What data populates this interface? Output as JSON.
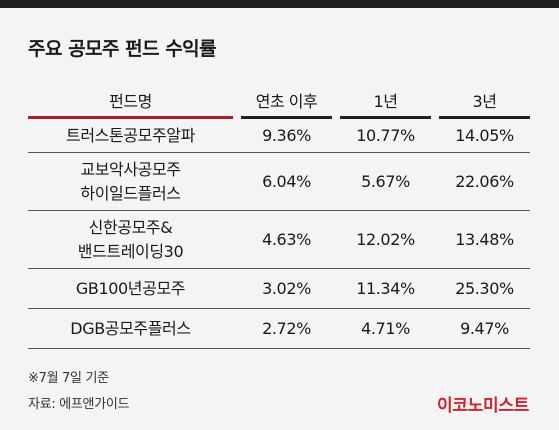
{
  "title": "주요 공모주 펀드 수익률",
  "headers": [
    "펀드명",
    "연초 이후",
    "1년",
    "3년"
  ],
  "rows": [
    {
      "name_lines": [
        "트러스톤공모주알파"
      ],
      "ytd": "9.36%",
      "y1": "10.77%",
      "y3": "14.05%"
    },
    {
      "name_lines": [
        "교보악사공모주",
        "하이일드플러스"
      ],
      "ytd": "6.04%",
      "y1": "5.67%",
      "y3": "22.06%"
    },
    {
      "name_lines": [
        "신한공모주&",
        "밴드트레이딩30"
      ],
      "ytd": "4.63%",
      "y1": "12.02%",
      "y3": "13.48%"
    },
    {
      "name_lines": [
        "GB100년공모주"
      ],
      "ytd": "3.02%",
      "y1": "11.34%",
      "y3": "25.30%"
    },
    {
      "name_lines": [
        "DGB공모주플러스"
      ],
      "ytd": "2.72%",
      "y1": "4.71%",
      "y3": "9.47%"
    }
  ],
  "footnote": "※7월 7일 기준",
  "source": "자료: 에프앤가이드",
  "logo": "이코노미스트",
  "colors": {
    "accent_red": "#a0222a",
    "logo_red": "#d3202d",
    "top_bar": "#231f20"
  }
}
